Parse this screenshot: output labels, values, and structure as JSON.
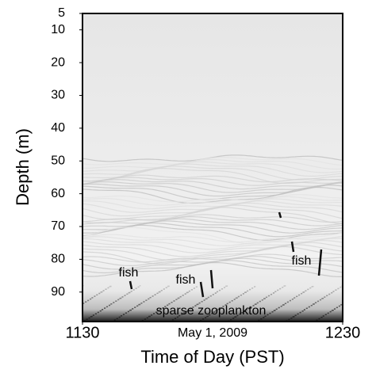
{
  "chart_data": {
    "type": "echogram",
    "subtitle": "May 1, 2009",
    "xlabel": "Time of Day (PST)",
    "ylabel": "Depth (m)",
    "xlim": [
      1130,
      1230
    ],
    "xticks": [
      1130,
      1230
    ],
    "ylim": [
      5,
      99
    ],
    "yticks": [
      5,
      10,
      20,
      30,
      40,
      50,
      60,
      70,
      80,
      90
    ],
    "inverted_y": true,
    "annotations": [
      "fish",
      "fish",
      "fish",
      "sparse zooplankton"
    ]
  }
}
